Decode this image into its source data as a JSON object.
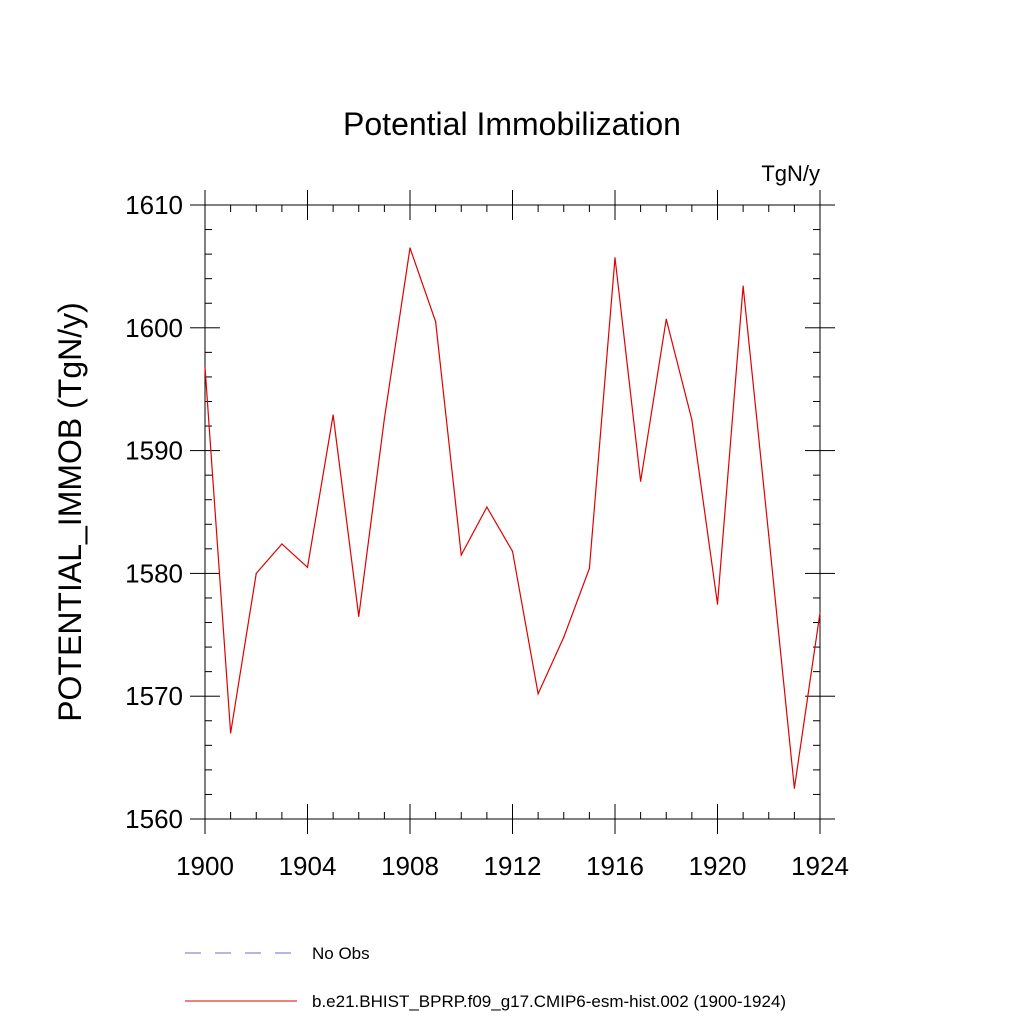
{
  "chart_data": {
    "type": "line",
    "title": "Potential Immobilization",
    "units": "TgN/y",
    "xlabel": "",
    "ylabel": "POTENTIAL_IMMOB  (TgN/y)",
    "xlim": [
      1900,
      1924
    ],
    "ylim": [
      1560,
      1610
    ],
    "xticks": [
      1900,
      1904,
      1908,
      1912,
      1916,
      1920,
      1924
    ],
    "yticks": [
      1560,
      1570,
      1580,
      1590,
      1600,
      1610
    ],
    "x": [
      1900,
      1901,
      1902,
      1903,
      1904,
      1905,
      1906,
      1907,
      1908,
      1909,
      1910,
      1911,
      1912,
      1913,
      1914,
      1915,
      1916,
      1917,
      1918,
      1919,
      1920,
      1921,
      1922,
      1923,
      1924
    ],
    "series": [
      {
        "name": "b.e21.BHIST_BPRP.f09_g17.CMIP6-esm-hist.002 (1900-1924)",
        "color": "#e00000",
        "style": "solid",
        "values": [
          1596.8,
          1567.0,
          1580.0,
          1582.4,
          1580.5,
          1592.9,
          1576.5,
          1592.6,
          1606.5,
          1600.5,
          1581.5,
          1585.4,
          1581.8,
          1570.2,
          1574.8,
          1580.4,
          1605.7,
          1587.5,
          1600.7,
          1592.5,
          1577.5,
          1603.4,
          1583.1,
          1562.5,
          1576.8
        ]
      }
    ],
    "legend": [
      {
        "label": "No Obs",
        "color": "#6b6bd6",
        "style": "dashed"
      },
      {
        "label": "b.e21.BHIST_BPRP.f09_g17.CMIP6-esm-hist.002 (1900-1924)",
        "color": "#e00000",
        "style": "solid"
      }
    ]
  }
}
